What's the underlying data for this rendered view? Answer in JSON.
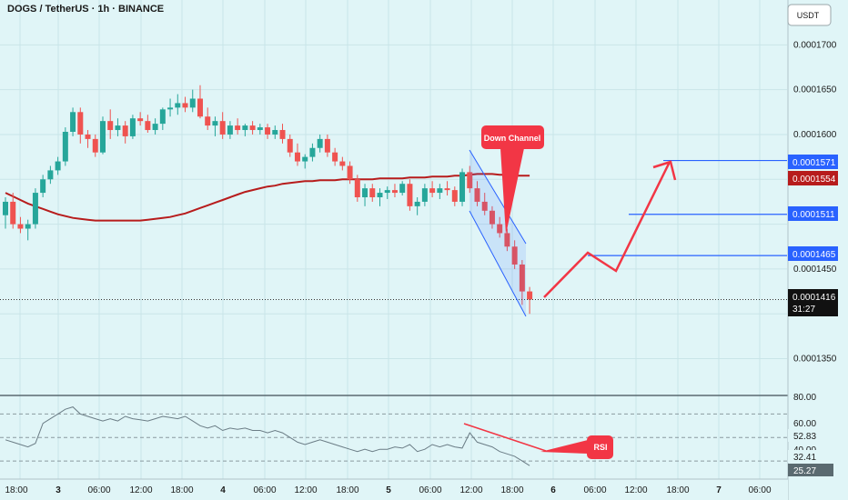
{
  "header": {
    "title": "DOGS / TetherUS · 1h · BINANCE"
  },
  "price_axis": {
    "currency": "USDT",
    "ticks": [
      "0.0001700",
      "0.0001650",
      "0.0001600",
      "0.0001450",
      "0.0001350"
    ]
  },
  "price_labels": [
    {
      "text": "0.0001571",
      "color": "#2962ff"
    },
    {
      "text": "0.0001554",
      "color": "#b71c1c"
    },
    {
      "text": "0.0001511",
      "color": "#2962ff"
    },
    {
      "text": "0.0001465",
      "color": "#2962ff"
    }
  ],
  "current_price": {
    "price": "0.0001416",
    "countdown": "31:27"
  },
  "time_axis": {
    "labels": [
      "18:00",
      "3",
      "06:00",
      "12:00",
      "18:00",
      "4",
      "06:00",
      "12:00",
      "18:00",
      "5",
      "06:00",
      "12:00",
      "18:00",
      "6",
      "06:00",
      "12:00",
      "18:00",
      "7",
      "06:00"
    ]
  },
  "rsi_axis": {
    "ticks": [
      "80.00",
      "60.00",
      "40.00"
    ],
    "value1": "52.83",
    "value2": "32.41",
    "value3": "25.27"
  },
  "annotations": {
    "channel": "Down Channel",
    "rsi": "RSI"
  },
  "colors": {
    "background": "#e0f5f7",
    "up_candle": "#26a69a",
    "down_candle": "#ef5350",
    "ma_line": "#b71c1c",
    "annotation": "#f23645",
    "level_line": "#2962ff"
  },
  "chart_data": {
    "type": "candlestick",
    "symbol": "DOGS / TetherUS",
    "interval": "1h",
    "exchange": "BINANCE",
    "y_range": [
      0.000131,
      0.000175
    ],
    "levels": [
      0.0001571,
      0.0001511,
      0.0001465
    ],
    "ma_last": 0.0001554,
    "current_price": 0.0001416,
    "candles": [
      [
        0.000151,
        0.000153,
        0.0001495,
        0.0001525
      ],
      [
        0.0001525,
        0.0001535,
        0.0001495,
        0.00015
      ],
      [
        0.00015,
        0.0001508,
        0.000149,
        0.0001495
      ],
      [
        0.0001495,
        0.0001505,
        0.0001482,
        0.00015
      ],
      [
        0.00015,
        0.000154,
        0.0001495,
        0.0001535
      ],
      [
        0.0001535,
        0.0001555,
        0.000153,
        0.000155
      ],
      [
        0.000155,
        0.0001565,
        0.0001545,
        0.000156
      ],
      [
        0.000156,
        0.0001575,
        0.0001555,
        0.000157
      ],
      [
        0.000157,
        0.0001608,
        0.0001565,
        0.0001603
      ],
      [
        0.0001603,
        0.000163,
        0.0001598,
        0.0001625
      ],
      [
        0.0001625,
        0.000163,
        0.000159,
        0.00016
      ],
      [
        0.00016,
        0.0001605,
        0.0001585,
        0.0001595
      ],
      [
        0.0001595,
        0.00016,
        0.0001575,
        0.000158
      ],
      [
        0.000158,
        0.000162,
        0.0001578,
        0.0001615
      ],
      [
        0.0001615,
        0.0001628,
        0.0001595,
        0.0001605
      ],
      [
        0.0001605,
        0.0001618,
        0.0001598,
        0.000161
      ],
      [
        0.000161,
        0.0001615,
        0.000159,
        0.0001598
      ],
      [
        0.0001598,
        0.0001622,
        0.0001595,
        0.0001618
      ],
      [
        0.0001618,
        0.0001625,
        0.000161,
        0.0001615
      ],
      [
        0.0001615,
        0.0001622,
        0.0001602,
        0.0001605
      ],
      [
        0.0001605,
        0.0001618,
        0.00016,
        0.0001612
      ],
      [
        0.0001612,
        0.000163,
        0.0001605,
        0.0001628
      ],
      [
        0.0001628,
        0.000164,
        0.000162,
        0.000163
      ],
      [
        0.000163,
        0.0001645,
        0.0001622,
        0.0001635
      ],
      [
        0.0001635,
        0.0001642,
        0.0001625,
        0.000163
      ],
      [
        0.000163,
        0.000165,
        0.0001625,
        0.000164
      ],
      [
        0.000164,
        0.0001655,
        0.0001618,
        0.000162
      ],
      [
        0.000162,
        0.000163,
        0.0001605,
        0.000161
      ],
      [
        0.000161,
        0.000162,
        0.0001598,
        0.0001615
      ],
      [
        0.0001615,
        0.0001625,
        0.0001595,
        0.00016
      ],
      [
        0.00016,
        0.0001615,
        0.0001595,
        0.000161
      ],
      [
        0.000161,
        0.0001618,
        0.00016,
        0.0001605
      ],
      [
        0.0001605,
        0.0001612,
        0.0001598,
        0.000161
      ],
      [
        0.000161,
        0.0001615,
        0.00016,
        0.0001605
      ],
      [
        0.0001605,
        0.0001612,
        0.00016,
        0.0001608
      ],
      [
        0.0001608,
        0.0001612,
        0.0001595,
        0.00016
      ],
      [
        0.00016,
        0.000161,
        0.0001595,
        0.0001605
      ],
      [
        0.0001605,
        0.0001612,
        0.000159,
        0.0001595
      ],
      [
        0.0001595,
        0.00016,
        0.0001575,
        0.000158
      ],
      [
        0.000158,
        0.000159,
        0.0001565,
        0.000157
      ],
      [
        0.000157,
        0.0001578,
        0.0001562,
        0.0001575
      ],
      [
        0.0001575,
        0.000159,
        0.000157,
        0.0001585
      ],
      [
        0.0001585,
        0.00016,
        0.000158,
        0.0001595
      ],
      [
        0.0001595,
        0.00016,
        0.0001575,
        0.000158
      ],
      [
        0.000158,
        0.0001585,
        0.0001565,
        0.000157
      ],
      [
        0.000157,
        0.0001575,
        0.000156,
        0.0001565
      ],
      [
        0.0001565,
        0.000157,
        0.0001545,
        0.000155
      ],
      [
        0.000155,
        0.0001555,
        0.0001525,
        0.000153
      ],
      [
        0.000153,
        0.0001545,
        0.000152,
        0.000154
      ],
      [
        0.000154,
        0.0001545,
        0.0001525,
        0.000153
      ],
      [
        0.000153,
        0.000154,
        0.000152,
        0.0001535
      ],
      [
        0.0001535,
        0.0001542,
        0.0001528,
        0.0001538
      ],
      [
        0.0001538,
        0.0001545,
        0.000153,
        0.0001535
      ],
      [
        0.0001535,
        0.0001548,
        0.0001532,
        0.0001545
      ],
      [
        0.0001545,
        0.000155,
        0.0001515,
        0.000152
      ],
      [
        0.000152,
        0.000153,
        0.000151,
        0.0001525
      ],
      [
        0.0001525,
        0.0001545,
        0.000152,
        0.000154
      ],
      [
        0.000154,
        0.0001548,
        0.000153,
        0.0001535
      ],
      [
        0.0001535,
        0.0001545,
        0.0001528,
        0.000154
      ],
      [
        0.000154,
        0.0001548,
        0.0001532,
        0.0001538
      ],
      [
        0.0001538,
        0.0001542,
        0.000152,
        0.0001525
      ],
      [
        0.0001525,
        0.0001562,
        0.000152,
        0.0001558
      ],
      [
        0.0001558,
        0.0001565,
        0.0001535,
        0.000154
      ],
      [
        0.000154,
        0.0001548,
        0.000152,
        0.0001525
      ],
      [
        0.0001525,
        0.0001535,
        0.000151,
        0.0001515
      ],
      [
        0.0001515,
        0.000152,
        0.0001495,
        0.00015
      ],
      [
        0.00015,
        0.0001508,
        0.0001485,
        0.000149
      ],
      [
        0.000149,
        0.0001495,
        0.000147,
        0.0001475
      ],
      [
        0.0001475,
        0.0001482,
        0.000145,
        0.0001455
      ],
      [
        0.0001455,
        0.000146,
        0.000141,
        0.0001425
      ],
      [
        0.0001425,
        0.000143,
        0.00014,
        0.0001416
      ]
    ],
    "ma_values": [
      0.0001535,
      0.0001531,
      0.0001527,
      0.0001523,
      0.000152,
      0.0001517,
      0.0001514,
      0.0001511,
      0.0001509,
      0.0001507,
      0.0001506,
      0.0001505,
      0.0001504,
      0.0001504,
      0.0001504,
      0.0001504,
      0.0001504,
      0.0001504,
      0.0001504,
      0.0001505,
      0.0001506,
      0.0001507,
      0.0001508,
      0.000151,
      0.0001512,
      0.0001515,
      0.0001518,
      0.0001521,
      0.0001524,
      0.0001527,
      0.000153,
      0.0001533,
      0.0001536,
      0.0001538,
      0.000154,
      0.0001542,
      0.0001543,
      0.0001545,
      0.0001546,
      0.0001547,
      0.0001548,
      0.0001548,
      0.0001549,
      0.0001549,
      0.0001549,
      0.000155,
      0.000155,
      0.000155,
      0.000155,
      0.000155,
      0.0001551,
      0.0001551,
      0.0001551,
      0.0001551,
      0.0001552,
      0.0001552,
      0.0001552,
      0.0001553,
      0.0001553,
      0.0001553,
      0.0001554,
      0.0001554,
      0.0001555,
      0.0001556,
      0.0001556,
      0.0001556,
      0.0001555,
      0.0001555,
      0.0001554,
      0.0001554,
      0.0001554
    ],
    "rsi_range": [
      20,
      85
    ],
    "rsi_values": [
      48,
      46,
      44,
      42,
      45,
      62,
      66,
      70,
      74,
      76,
      70,
      68,
      66,
      64,
      66,
      64,
      68,
      66,
      65,
      64,
      66,
      68,
      67,
      66,
      68,
      64,
      60,
      58,
      60,
      56,
      58,
      57,
      58,
      56,
      56,
      54,
      56,
      54,
      50,
      46,
      44,
      46,
      48,
      46,
      44,
      42,
      40,
      38,
      40,
      38,
      40,
      40,
      42,
      41,
      44,
      38,
      40,
      44,
      42,
      44,
      42,
      41,
      54,
      46,
      44,
      42,
      38,
      36,
      34,
      30,
      26
    ]
  }
}
